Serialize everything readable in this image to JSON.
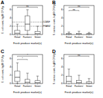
{
  "chart_data": [
    {
      "type": "box",
      "title": "A",
      "y_label": "E. coli count, log10 CFU/g",
      "x_label": "Fresh produce market(s)",
      "categories": [
        "Retail",
        "Farmers'",
        "Street"
      ],
      "color": "#ffffff",
      "ylim": [
        0,
        7
      ],
      "yticks": [
        0,
        2,
        4,
        6
      ],
      "boxes": [
        {
          "min": 0,
          "q1": 0,
          "median": 0.3,
          "q3": 1,
          "max": 2.5
        },
        {
          "min": 0,
          "q1": 1,
          "median": 2.5,
          "q3": 4.5,
          "max": 6
        },
        {
          "min": 0,
          "q1": 0,
          "median": 0.2,
          "q3": 0.8,
          "max": 2
        }
      ],
      "reference_lines": [
        {
          "value": 3,
          "label": "ICMSF"
        },
        {
          "value": 2,
          "label": "FSANZ"
        }
      ],
      "annotations": [
        {
          "text": "ns",
          "from": 0,
          "to": 2,
          "y": 6.6
        }
      ]
    },
    {
      "type": "box",
      "title": "B",
      "y_label": "S. aureus count, log10 CFU/g",
      "x_label": "Fresh produce market(s)",
      "categories": [
        "Retail",
        "Farmers'",
        "Street"
      ],
      "color": "#ffffff",
      "ylim": [
        0,
        7
      ],
      "yticks": [
        0,
        2,
        4,
        6
      ],
      "boxes": [
        {
          "min": 0,
          "q1": 0,
          "median": 0,
          "q3": 0.2,
          "max": 0.6
        },
        {
          "min": 0,
          "q1": 0,
          "median": 0,
          "q3": 0.3,
          "max": 0.8
        },
        {
          "min": 0,
          "q1": 0,
          "median": 0,
          "q3": 0.2,
          "max": 0.5
        }
      ],
      "annotations": [
        {
          "text": "ns",
          "from": 0,
          "to": 1,
          "y": 5.8
        },
        {
          "text": "ns",
          "from": 0,
          "to": 2,
          "y": 6.6
        }
      ]
    },
    {
      "type": "box",
      "title": "C",
      "y_label": "E. coli count, log10 CFU/g",
      "x_label": "Fresh produce market(s)",
      "categories": [
        "Retail",
        "Farmers'",
        "Street"
      ],
      "color": "#ffffff",
      "ylim": [
        0,
        7
      ],
      "yticks": [
        0,
        2,
        4,
        6
      ],
      "boxes": [
        {
          "min": 0,
          "q1": 0.5,
          "median": 1.5,
          "q3": 3,
          "max": 5
        },
        {
          "min": 0,
          "q1": 0,
          "median": 0.3,
          "q3": 1,
          "max": 2.5
        },
        {
          "min": 0,
          "q1": 0,
          "median": 0.2,
          "q3": 0.7,
          "max": 1.8
        }
      ],
      "annotations": [
        {
          "text": "*",
          "from": 0,
          "to": 1,
          "y": 5.8
        },
        {
          "text": "*",
          "from": 0,
          "to": 2,
          "y": 6.6
        }
      ]
    },
    {
      "type": "box",
      "title": "D",
      "y_label": "S. aureus count, log10 CFU/g",
      "x_label": "Fresh produce market(s)",
      "categories": [
        "Retail",
        "Farmers'",
        "Street"
      ],
      "color": "#ffffff",
      "ylim": [
        0,
        7
      ],
      "yticks": [
        0,
        2,
        4,
        6
      ],
      "boxes": [
        {
          "min": 0,
          "q1": 0,
          "median": 0.5,
          "q3": 1.8,
          "max": 3.5
        },
        {
          "min": 0,
          "q1": 0,
          "median": 0.2,
          "q3": 0.8,
          "max": 2
        },
        {
          "min": 0,
          "q1": 0,
          "median": 0,
          "q3": 0.4,
          "max": 1.2
        }
      ],
      "annotations": [
        {
          "text": "ns",
          "from": 0,
          "to": 2,
          "y": 6.6
        }
      ]
    }
  ]
}
